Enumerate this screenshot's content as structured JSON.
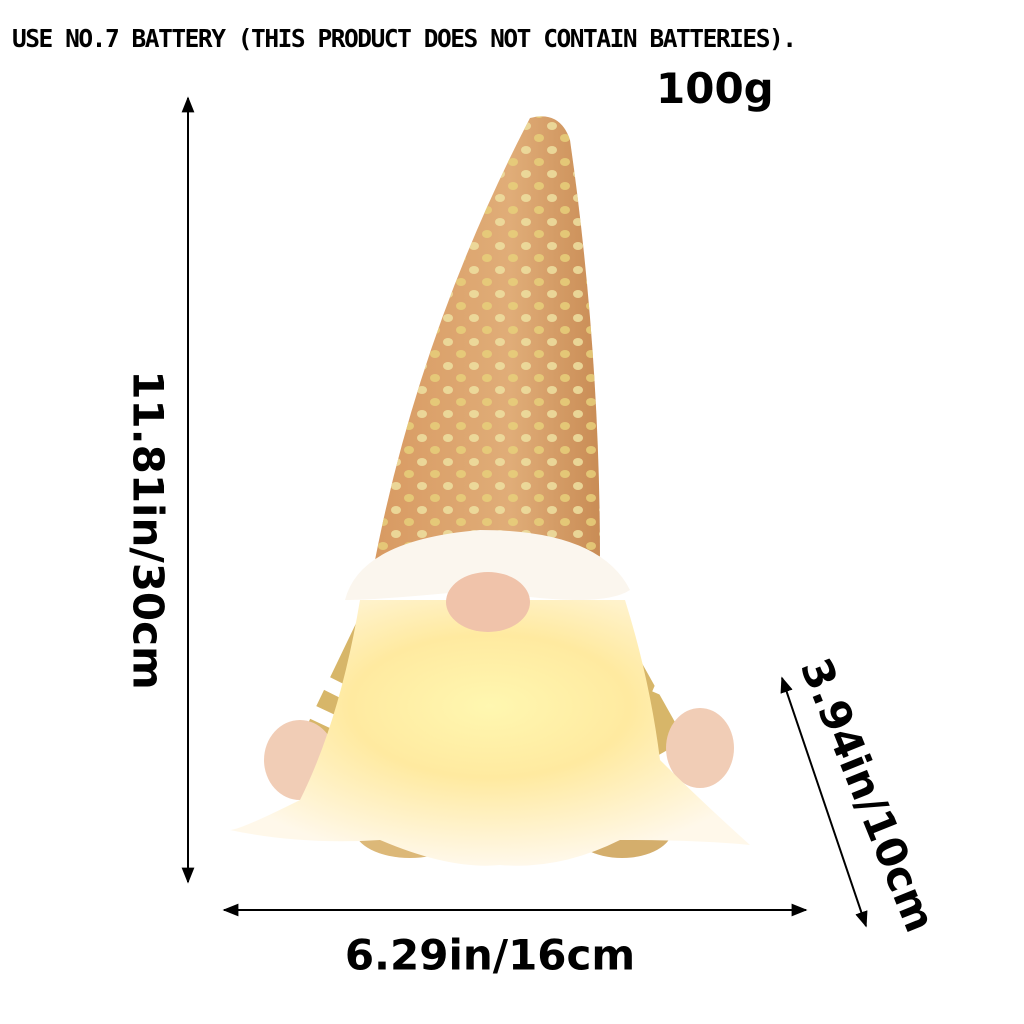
{
  "battery_note": "USE NO.7 BATTERY (THIS PRODUCT DOES NOT CONTAIN BATTERIES).",
  "weight": "100g",
  "dimensions": {
    "height": "11.81in/30cm",
    "width": "6.29in/16cm",
    "depth": "3.94in/10cm"
  },
  "colors": {
    "hat": "#d9a06a",
    "sequin": "#e8d27a",
    "beard": "#fff3c8",
    "glow": "#ffe680",
    "nose": "#f0c3aa",
    "sleeve": "#d4b060"
  }
}
